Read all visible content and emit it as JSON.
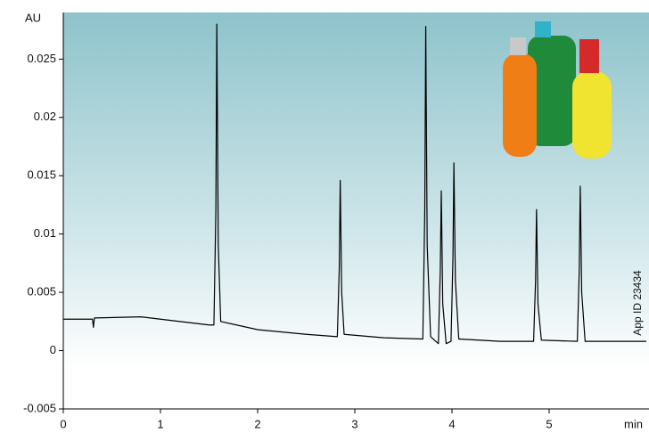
{
  "chart_data": {
    "type": "line",
    "y_label": "AU",
    "x_label": "min",
    "annotation": "App ID 23434",
    "x": [
      0,
      0.3,
      0.31,
      0.32,
      0.8,
      1.0,
      1.5,
      1.55,
      1.57,
      1.58,
      1.595,
      1.62,
      2.0,
      2.5,
      2.82,
      2.84,
      2.85,
      2.865,
      2.89,
      3.3,
      3.7,
      3.72,
      3.73,
      3.745,
      3.78,
      3.86,
      3.88,
      3.89,
      3.905,
      3.94,
      3.99,
      4.01,
      4.02,
      4.035,
      4.07,
      4.5,
      4.84,
      4.86,
      4.87,
      4.885,
      4.92,
      5.29,
      5.31,
      5.32,
      5.335,
      5.37,
      6.0
    ],
    "values": [
      0.0027,
      0.0027,
      0.002,
      0.0028,
      0.0029,
      0.0027,
      0.0022,
      0.0022,
      0.012,
      0.028,
      0.009,
      0.0025,
      0.0018,
      0.0014,
      0.0012,
      0.007,
      0.0146,
      0.005,
      0.0014,
      0.0011,
      0.001,
      0.012,
      0.0278,
      0.009,
      0.0012,
      0.0006,
      0.007,
      0.0137,
      0.004,
      0.0006,
      0.0008,
      0.008,
      0.0161,
      0.006,
      0.001,
      0.0008,
      0.0008,
      0.006,
      0.0121,
      0.004,
      0.0009,
      0.0008,
      0.007,
      0.0141,
      0.005,
      0.0008,
      0.0008
    ],
    "color": "#000000",
    "xlim": [
      0,
      6
    ],
    "xticks": [
      0,
      1,
      2,
      3,
      4,
      5
    ],
    "ylim": [
      -0.005,
      0.029
    ],
    "yticks": [
      -0.005,
      0,
      0.005,
      0.01,
      0.015,
      0.02,
      0.025
    ]
  }
}
